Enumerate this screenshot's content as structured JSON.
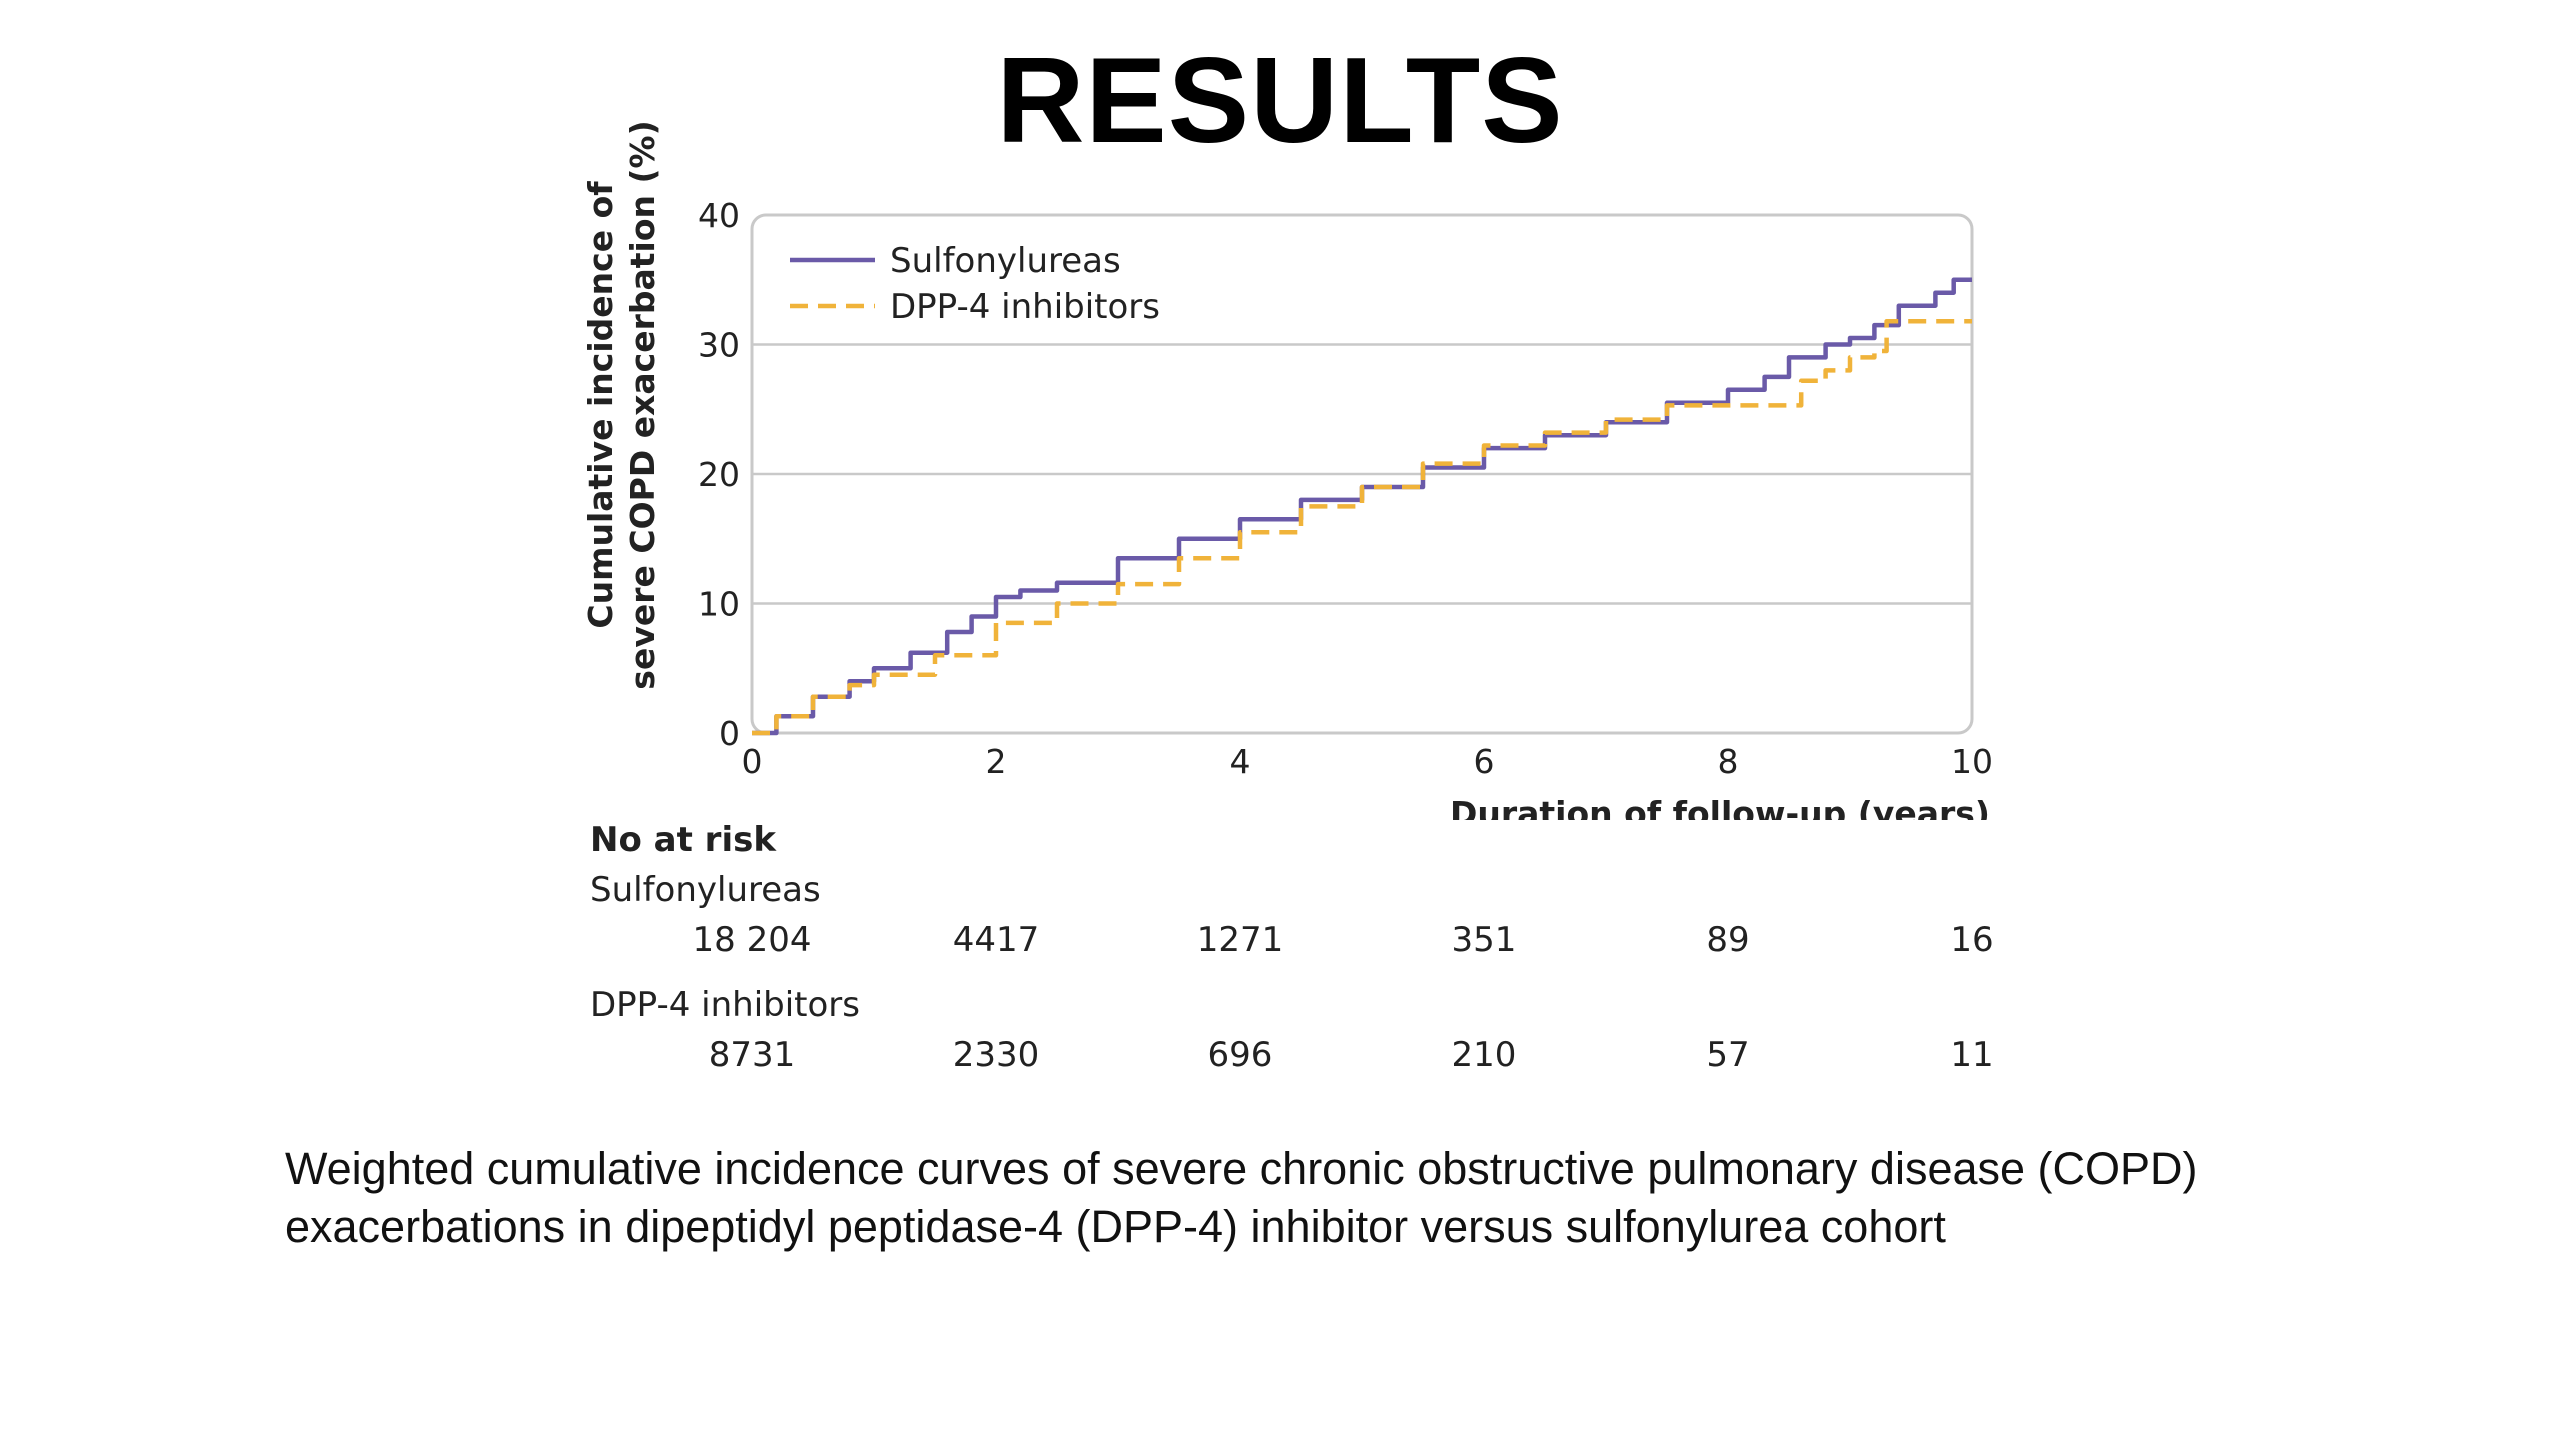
{
  "slide": {
    "title": "RESULTS",
    "caption": "Weighted cumulative incidence curves of severe chronic obstructive pulmonary disease (COPD) exacerbations in dipeptidyl peptidase-4 (DPP-4) inhibitor versus sulfonylurea cohort"
  },
  "chart_data": {
    "type": "line",
    "title": "",
    "ylabel_line1": "Cumulative incidence of",
    "ylabel_line2": "severe COPD exacerbation (%)",
    "xlabel": "Duration of follow-up (years)",
    "xlim": [
      0,
      10
    ],
    "ylim": [
      0,
      40
    ],
    "xticks": [
      0,
      2,
      4,
      6,
      8,
      10
    ],
    "yticks": [
      0,
      10,
      20,
      30,
      40
    ],
    "grid": "horizontal",
    "legend_position": "top-left",
    "series": [
      {
        "name": "Sulfonylureas",
        "color": "#6a5aa8",
        "style": "solid",
        "points": [
          [
            0,
            0
          ],
          [
            0.2,
            1.3
          ],
          [
            0.5,
            2.8
          ],
          [
            0.8,
            4.0
          ],
          [
            1.0,
            5.0
          ],
          [
            1.3,
            6.2
          ],
          [
            1.6,
            7.8
          ],
          [
            1.8,
            9.0
          ],
          [
            2.0,
            10.5
          ],
          [
            2.2,
            11.0
          ],
          [
            2.5,
            11.6
          ],
          [
            3.0,
            13.5
          ],
          [
            3.5,
            15.0
          ],
          [
            4.0,
            16.5
          ],
          [
            4.5,
            18.0
          ],
          [
            5.0,
            19.0
          ],
          [
            5.5,
            20.5
          ],
          [
            6.0,
            22.0
          ],
          [
            6.5,
            23.0
          ],
          [
            7.0,
            24.0
          ],
          [
            7.5,
            25.5
          ],
          [
            8.0,
            26.5
          ],
          [
            8.3,
            27.5
          ],
          [
            8.5,
            29.0
          ],
          [
            8.8,
            30.0
          ],
          [
            9.0,
            30.5
          ],
          [
            9.2,
            31.5
          ],
          [
            9.4,
            33.0
          ],
          [
            9.7,
            34.0
          ],
          [
            9.85,
            35.0
          ],
          [
            10.0,
            35.0
          ]
        ]
      },
      {
        "name": "DPP-4 inhibitors",
        "color": "#f0b33a",
        "style": "dashed",
        "points": [
          [
            0,
            0
          ],
          [
            0.2,
            1.3
          ],
          [
            0.5,
            2.8
          ],
          [
            0.8,
            3.7
          ],
          [
            1.0,
            4.5
          ],
          [
            1.5,
            6.0
          ],
          [
            2.0,
            8.5
          ],
          [
            2.5,
            10.0
          ],
          [
            3.0,
            11.5
          ],
          [
            3.5,
            13.5
          ],
          [
            4.0,
            15.5
          ],
          [
            4.5,
            17.5
          ],
          [
            5.0,
            19.0
          ],
          [
            5.5,
            20.8
          ],
          [
            6.0,
            22.2
          ],
          [
            6.5,
            23.2
          ],
          [
            7.0,
            24.2
          ],
          [
            7.5,
            25.3
          ],
          [
            8.0,
            25.3
          ],
          [
            8.4,
            25.3
          ],
          [
            8.6,
            27.2
          ],
          [
            8.8,
            28.0
          ],
          [
            9.0,
            29.0
          ],
          [
            9.2,
            29.5
          ],
          [
            9.3,
            31.8
          ],
          [
            10.0,
            31.8
          ]
        ]
      }
    ]
  },
  "risk_table": {
    "title": "No at risk",
    "groups": [
      {
        "name": "Sulfonylureas",
        "values": [
          "18 204",
          "4417",
          "1271",
          "351",
          "89",
          "16"
        ]
      },
      {
        "name": "DPP-4 inhibitors",
        "values": [
          "8731",
          "2330",
          "696",
          "210",
          "57",
          "11"
        ]
      }
    ]
  }
}
